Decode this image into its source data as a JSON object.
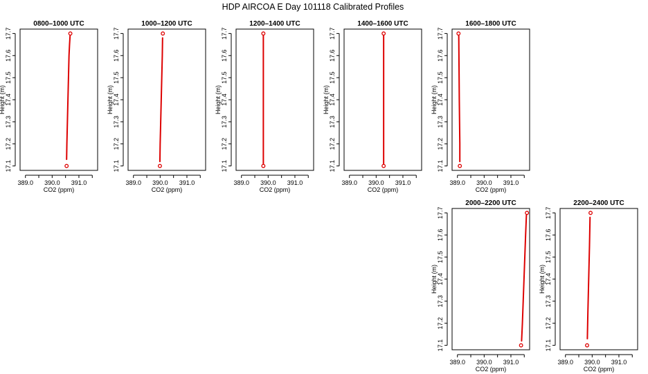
{
  "figure": {
    "title": "HDP AIRCOA E  Day 101118  Calibrated Profiles",
    "line_color": "#dd0000",
    "marker_color": "#dd0000"
  },
  "chart_data": [
    {
      "type": "line",
      "title": "0800–1000 UTC",
      "xlabel": "CO2 (ppm)",
      "ylabel": "Height (m)",
      "xlim": [
        388.8,
        391.7
      ],
      "ylim": [
        17.08,
        17.72
      ],
      "x_ticks": [
        "389.0",
        "390.0",
        "391.0"
      ],
      "y_ticks": [
        "17.1",
        "17.2",
        "17.3",
        "17.4",
        "17.5",
        "17.6",
        "17.7"
      ],
      "series": [
        {
          "x": [
            390.54,
            390.55,
            390.57,
            390.59,
            390.61,
            390.63,
            390.65,
            390.67
          ],
          "y": [
            17.13,
            17.2,
            17.3,
            17.4,
            17.5,
            17.6,
            17.65,
            17.69
          ],
          "markers": [
            {
              "x": 390.54,
              "y": 17.1
            },
            {
              "x": 390.68,
              "y": 17.7
            }
          ]
        }
      ]
    },
    {
      "type": "line",
      "title": "1000–1200 UTC",
      "xlabel": "CO2 (ppm)",
      "ylabel": "Height (m)",
      "xlim": [
        388.8,
        391.7
      ],
      "ylim": [
        17.08,
        17.72
      ],
      "x_ticks": [
        "389.0",
        "390.0",
        "391.0"
      ],
      "y_ticks": [
        "17.1",
        "17.2",
        "17.3",
        "17.4",
        "17.5",
        "17.6",
        "17.7"
      ],
      "series": [
        {
          "x": [
            389.99,
            390.0,
            390.02,
            390.04,
            390.06,
            390.08,
            390.09
          ],
          "y": [
            17.12,
            17.2,
            17.3,
            17.4,
            17.5,
            17.6,
            17.68
          ],
          "markers": [
            {
              "x": 389.99,
              "y": 17.1
            },
            {
              "x": 390.1,
              "y": 17.7
            }
          ]
        }
      ]
    },
    {
      "type": "line",
      "title": "1200–1400 UTC",
      "xlabel": "CO2 (ppm)",
      "ylabel": "Height (m)",
      "xlim": [
        388.8,
        391.7
      ],
      "ylim": [
        17.08,
        17.72
      ],
      "x_ticks": [
        "389.0",
        "390.0",
        "391.0"
      ],
      "y_ticks": [
        "17.1",
        "17.2",
        "17.3",
        "17.4",
        "17.5",
        "17.6",
        "17.7"
      ],
      "series": [
        {
          "x": [
            389.82,
            389.82,
            389.82,
            389.82,
            389.82
          ],
          "y": [
            17.11,
            17.3,
            17.4,
            17.5,
            17.69
          ],
          "markers": [
            {
              "x": 389.82,
              "y": 17.1
            },
            {
              "x": 389.82,
              "y": 17.7
            }
          ]
        }
      ]
    },
    {
      "type": "line",
      "title": "1400–1600 UTC",
      "xlabel": "CO2 (ppm)",
      "ylabel": "Height (m)",
      "xlim": [
        388.8,
        391.7
      ],
      "ylim": [
        17.08,
        17.72
      ],
      "x_ticks": [
        "389.0",
        "390.0",
        "391.0"
      ],
      "y_ticks": [
        "17.1",
        "17.2",
        "17.3",
        "17.4",
        "17.5",
        "17.6",
        "17.7"
      ],
      "series": [
        {
          "x": [
            390.28,
            390.28,
            390.28,
            390.28,
            390.28
          ],
          "y": [
            17.11,
            17.3,
            17.4,
            17.5,
            17.69
          ],
          "markers": [
            {
              "x": 390.28,
              "y": 17.1
            },
            {
              "x": 390.28,
              "y": 17.7
            }
          ]
        }
      ]
    },
    {
      "type": "line",
      "title": "1600–1800 UTC",
      "xlabel": "CO2 (ppm)",
      "ylabel": "Height (m)",
      "xlim": [
        388.8,
        391.7
      ],
      "ylim": [
        17.08,
        17.72
      ],
      "x_ticks": [
        "389.0",
        "390.0",
        "391.0"
      ],
      "y_ticks": [
        "17.1",
        "17.2",
        "17.3",
        "17.4",
        "17.5",
        "17.6",
        "17.7"
      ],
      "series": [
        {
          "x": [
            389.09,
            389.09,
            389.08,
            389.07,
            389.06,
            389.05
          ],
          "y": [
            17.12,
            17.2,
            17.3,
            17.4,
            17.55,
            17.69
          ],
          "markers": [
            {
              "x": 389.09,
              "y": 17.1
            },
            {
              "x": 389.04,
              "y": 17.7
            }
          ]
        }
      ]
    },
    {
      "type": "line",
      "title": "2000–2200 UTC",
      "xlabel": "CO2 (ppm)",
      "ylabel": "Height (m)",
      "xlim": [
        388.8,
        391.7
      ],
      "ylim": [
        17.08,
        17.72
      ],
      "x_ticks": [
        "389.0",
        "390.0",
        "391.0"
      ],
      "y_ticks": [
        "17.1",
        "17.2",
        "17.3",
        "17.4",
        "17.5",
        "17.6",
        "17.7"
      ],
      "series": [
        {
          "x": [
            391.4,
            391.43,
            391.46,
            391.49,
            391.52,
            391.55,
            391.58
          ],
          "y": [
            17.12,
            17.2,
            17.3,
            17.4,
            17.5,
            17.6,
            17.69
          ],
          "markers": [
            {
              "x": 391.38,
              "y": 17.1
            },
            {
              "x": 391.6,
              "y": 17.7
            }
          ]
        }
      ]
    },
    {
      "type": "line",
      "title": "2200–2400 UTC",
      "xlabel": "CO2 (ppm)",
      "ylabel": "Height (m)",
      "xlim": [
        388.8,
        391.7
      ],
      "ylim": [
        17.08,
        17.72
      ],
      "x_ticks": [
        "389.0",
        "390.0",
        "391.0"
      ],
      "y_ticks": [
        "17.1",
        "17.2",
        "17.3",
        "17.4",
        "17.5",
        "17.6",
        "17.7"
      ],
      "series": [
        {
          "x": [
            389.82,
            389.84,
            389.86,
            389.88,
            389.9,
            389.92
          ],
          "y": [
            17.13,
            17.25,
            17.35,
            17.45,
            17.55,
            17.68
          ],
          "markers": [
            {
              "x": 389.81,
              "y": 17.1
            },
            {
              "x": 389.94,
              "y": 17.7
            }
          ]
        }
      ]
    }
  ]
}
